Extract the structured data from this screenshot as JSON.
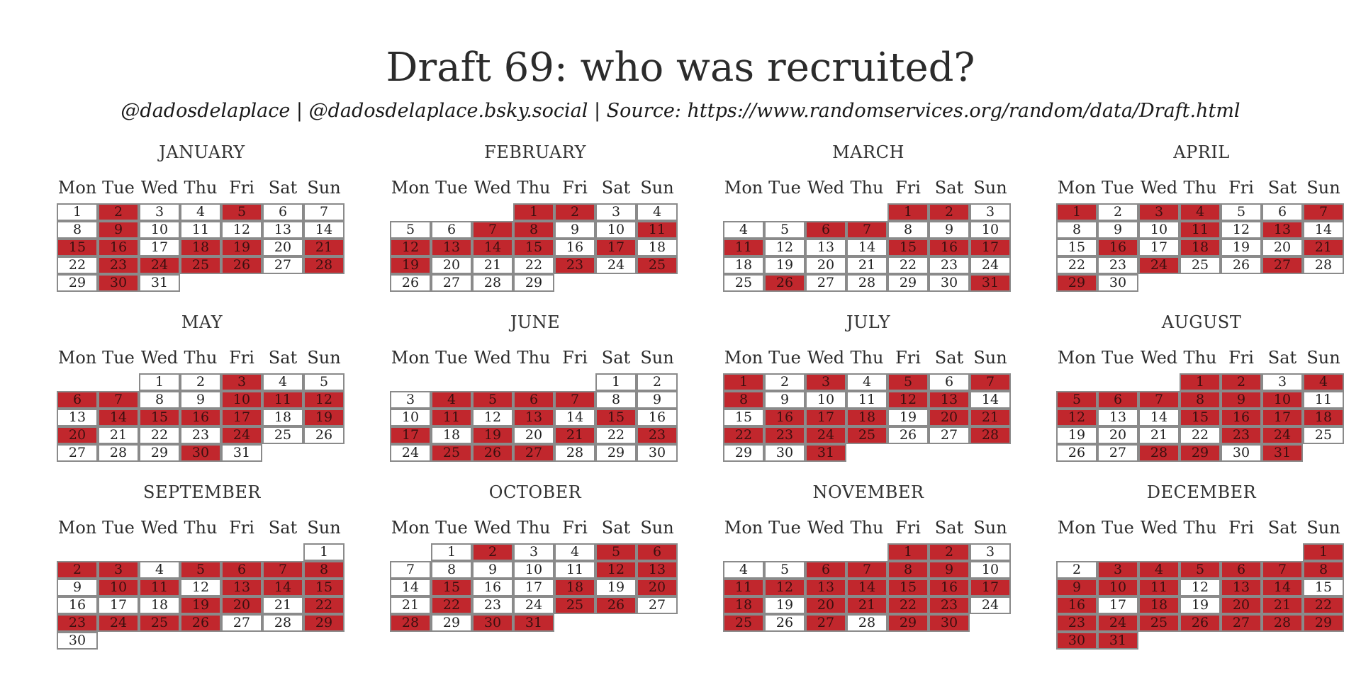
{
  "title": "Draft 69: who was recruited?",
  "subtitle": "@dadosdelaplace | @dadosdelaplace.bsky.social | Source: https://www.randomservices.org/random/data/Draft.html",
  "colors": {
    "drafted": "#c1272d",
    "not_drafted": "#ffffff",
    "border": "#8a8a8a"
  },
  "weekdays": [
    "Mon",
    "Tue",
    "Wed",
    "Thu",
    "Fri",
    "Sat",
    "Sun"
  ],
  "chart_data": {
    "type": "calendar-heatmap",
    "year": 1969,
    "months": [
      {
        "name": "JANUARY",
        "first_weekday": 0,
        "days": 31,
        "drafted": [
          2,
          5,
          9,
          15,
          16,
          18,
          19,
          21,
          23,
          24,
          25,
          26,
          28,
          30
        ]
      },
      {
        "name": "FEBRUARY",
        "first_weekday": 3,
        "days": 29,
        "drafted": [
          1,
          2,
          7,
          8,
          11,
          12,
          13,
          14,
          15,
          17,
          19,
          23,
          25
        ]
      },
      {
        "name": "MARCH",
        "first_weekday": 4,
        "days": 31,
        "drafted": [
          1,
          2,
          6,
          7,
          11,
          15,
          16,
          17,
          26,
          31
        ]
      },
      {
        "name": "APRIL",
        "first_weekday": 0,
        "days": 30,
        "drafted": [
          1,
          3,
          4,
          7,
          11,
          13,
          16,
          18,
          21,
          24,
          27,
          29
        ]
      },
      {
        "name": "MAY",
        "first_weekday": 2,
        "days": 31,
        "drafted": [
          3,
          6,
          7,
          10,
          11,
          12,
          14,
          15,
          16,
          17,
          19,
          20,
          24,
          30
        ]
      },
      {
        "name": "JUNE",
        "first_weekday": 5,
        "days": 30,
        "drafted": [
          4,
          5,
          6,
          7,
          11,
          13,
          15,
          17,
          19,
          21,
          23,
          25,
          26,
          27
        ]
      },
      {
        "name": "JULY",
        "first_weekday": 0,
        "days": 31,
        "drafted": [
          1,
          3,
          5,
          7,
          8,
          12,
          13,
          16,
          17,
          18,
          20,
          21,
          22,
          23,
          24,
          25,
          28,
          31
        ]
      },
      {
        "name": "AUGUST",
        "first_weekday": 3,
        "days": 31,
        "drafted": [
          1,
          2,
          4,
          5,
          6,
          7,
          8,
          9,
          10,
          12,
          15,
          16,
          17,
          18,
          23,
          24,
          28,
          29,
          31
        ]
      },
      {
        "name": "SEPTEMBER",
        "first_weekday": 6,
        "days": 30,
        "drafted": [
          2,
          3,
          5,
          6,
          7,
          8,
          10,
          11,
          13,
          14,
          15,
          19,
          20,
          22,
          23,
          24,
          25,
          26,
          29
        ]
      },
      {
        "name": "OCTOBER",
        "first_weekday": 1,
        "days": 31,
        "drafted": [
          2,
          5,
          6,
          12,
          13,
          15,
          18,
          20,
          22,
          25,
          26,
          28,
          30,
          31
        ]
      },
      {
        "name": "NOVEMBER",
        "first_weekday": 4,
        "days": 30,
        "drafted": [
          1,
          2,
          6,
          7,
          8,
          9,
          11,
          12,
          13,
          14,
          15,
          16,
          17,
          18,
          20,
          21,
          22,
          23,
          25,
          27,
          29,
          30
        ]
      },
      {
        "name": "DECEMBER",
        "first_weekday": 6,
        "days": 31,
        "drafted": [
          1,
          3,
          4,
          5,
          6,
          7,
          8,
          9,
          10,
          11,
          13,
          14,
          16,
          18,
          20,
          21,
          22,
          23,
          24,
          25,
          26,
          27,
          28,
          29,
          30,
          31
        ]
      }
    ]
  }
}
